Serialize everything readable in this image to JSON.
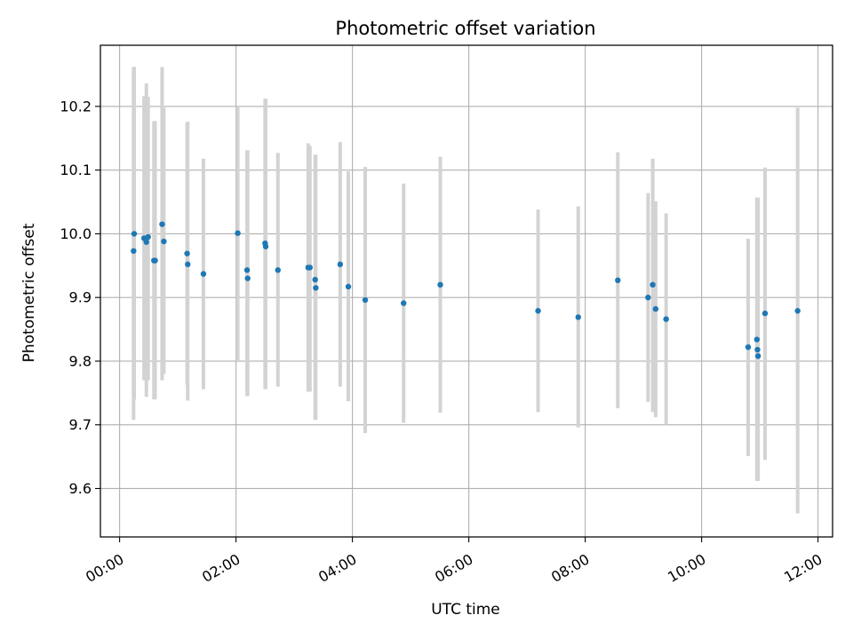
{
  "chart_data": {
    "type": "scatter",
    "title": "Photometric offset variation",
    "xlabel": "UTC time",
    "ylabel": "Photometric offset",
    "x_unit": "hours UTC",
    "xlim": [
      -0.33,
      12.25
    ],
    "ylim": [
      9.524,
      10.296
    ],
    "x_ticks": [
      {
        "value": 0,
        "label": "00:00"
      },
      {
        "value": 2,
        "label": "02:00"
      },
      {
        "value": 4,
        "label": "04:00"
      },
      {
        "value": 6,
        "label": "06:00"
      },
      {
        "value": 8,
        "label": "08:00"
      },
      {
        "value": 10,
        "label": "10:00"
      },
      {
        "value": 12,
        "label": "12:00"
      }
    ],
    "y_ticks": [
      {
        "value": 9.6,
        "label": "9.6"
      },
      {
        "value": 9.7,
        "label": "9.7"
      },
      {
        "value": 9.8,
        "label": "9.8"
      },
      {
        "value": 9.9,
        "label": "9.9"
      },
      {
        "value": 10.0,
        "label": "10.0"
      },
      {
        "value": 10.1,
        "label": "10.1"
      },
      {
        "value": 10.2,
        "label": "10.2"
      }
    ],
    "grid": true,
    "colors": {
      "marker": "#1f77b4",
      "errorbar": "#d3d3d3",
      "grid": "#b0b0b0"
    },
    "series": [
      {
        "points": [
          {
            "x": 0.24,
            "y": 9.973,
            "low": 9.708,
            "high": 10.262
          },
          {
            "x": 0.25,
            "y": 10.0,
            "low": 9.74,
            "high": 10.262
          },
          {
            "x": 0.42,
            "y": 9.993,
            "low": 9.77,
            "high": 10.216
          },
          {
            "x": 0.46,
            "y": 9.987,
            "low": 9.744,
            "high": 10.236
          },
          {
            "x": 0.49,
            "y": 9.995,
            "low": 9.77,
            "high": 10.215
          },
          {
            "x": 0.59,
            "y": 9.958,
            "low": 9.74,
            "high": 10.177
          },
          {
            "x": 0.61,
            "y": 9.958,
            "low": 9.74,
            "high": 10.177
          },
          {
            "x": 0.73,
            "y": 10.015,
            "low": 9.77,
            "high": 10.262
          },
          {
            "x": 0.76,
            "y": 9.988,
            "low": 9.78,
            "high": 10.198
          },
          {
            "x": 1.16,
            "y": 9.969,
            "low": 9.763,
            "high": 10.174
          },
          {
            "x": 1.17,
            "y": 9.952,
            "low": 9.738,
            "high": 10.176
          },
          {
            "x": 1.44,
            "y": 9.937,
            "low": 9.756,
            "high": 10.118
          },
          {
            "x": 2.03,
            "y": 10.001,
            "low": 9.8,
            "high": 10.2
          },
          {
            "x": 2.19,
            "y": 9.943,
            "low": 9.745,
            "high": 10.131
          },
          {
            "x": 2.2,
            "y": 9.93,
            "low": 9.745,
            "high": 10.131
          },
          {
            "x": 2.5,
            "y": 9.985,
            "low": 9.756,
            "high": 10.212
          },
          {
            "x": 2.51,
            "y": 9.98,
            "low": 9.756,
            "high": 10.212
          },
          {
            "x": 2.72,
            "y": 9.943,
            "low": 9.76,
            "high": 10.127
          },
          {
            "x": 3.24,
            "y": 9.947,
            "low": 9.752,
            "high": 10.142
          },
          {
            "x": 3.27,
            "y": 9.947,
            "low": 9.752,
            "high": 10.138
          },
          {
            "x": 3.36,
            "y": 9.928,
            "low": 9.708,
            "high": 10.124
          },
          {
            "x": 3.37,
            "y": 9.915,
            "low": 9.708,
            "high": 10.124
          },
          {
            "x": 3.79,
            "y": 9.952,
            "low": 9.76,
            "high": 10.144
          },
          {
            "x": 3.93,
            "y": 9.917,
            "low": 9.737,
            "high": 10.098
          },
          {
            "x": 4.22,
            "y": 9.896,
            "low": 9.687,
            "high": 10.105
          },
          {
            "x": 4.88,
            "y": 9.891,
            "low": 9.703,
            "high": 10.079
          },
          {
            "x": 5.51,
            "y": 9.92,
            "low": 9.719,
            "high": 10.121
          },
          {
            "x": 7.19,
            "y": 9.879,
            "low": 9.72,
            "high": 10.038
          },
          {
            "x": 7.88,
            "y": 9.869,
            "low": 9.696,
            "high": 10.043
          },
          {
            "x": 8.56,
            "y": 9.927,
            "low": 9.726,
            "high": 10.128
          },
          {
            "x": 9.08,
            "y": 9.9,
            "low": 9.736,
            "high": 10.064
          },
          {
            "x": 9.16,
            "y": 9.92,
            "low": 9.72,
            "high": 10.118
          },
          {
            "x": 9.21,
            "y": 9.882,
            "low": 9.712,
            "high": 10.051
          },
          {
            "x": 9.39,
            "y": 9.866,
            "low": 9.7,
            "high": 10.032
          },
          {
            "x": 10.8,
            "y": 9.822,
            "low": 9.651,
            "high": 9.992
          },
          {
            "x": 10.95,
            "y": 9.834,
            "low": 9.612,
            "high": 10.057
          },
          {
            "x": 10.96,
            "y": 9.818,
            "low": 9.612,
            "high": 10.057
          },
          {
            "x": 10.97,
            "y": 9.808,
            "low": 9.612,
            "high": 10.057
          },
          {
            "x": 11.09,
            "y": 9.875,
            "low": 9.645,
            "high": 10.104
          },
          {
            "x": 11.65,
            "y": 9.879,
            "low": 9.561,
            "high": 10.198
          }
        ]
      }
    ]
  }
}
